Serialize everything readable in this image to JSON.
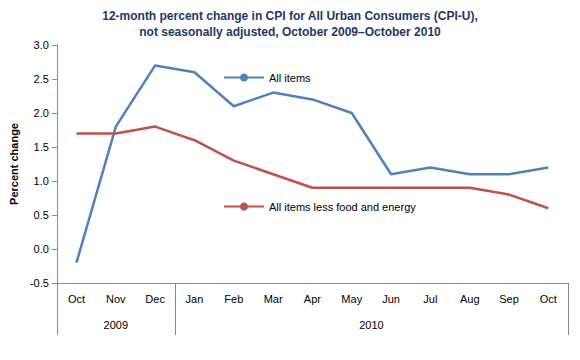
{
  "chart_data": {
    "type": "line",
    "title": "12-month percent change in CPI for All Urban Consumers (CPI-U),\nnot seasonally adjusted, October 2009–October 2010",
    "y_label": "Percent change",
    "categories": [
      "Oct",
      "Nov",
      "Dec",
      "Jan",
      "Feb",
      "Mar",
      "Apr",
      "May",
      "Jun",
      "Jul",
      "Aug",
      "Sep",
      "Oct"
    ],
    "series": [
      {
        "name": "All items",
        "color": "#4f81bd",
        "values": [
          -0.2,
          1.8,
          2.7,
          2.6,
          2.1,
          2.3,
          2.2,
          2.0,
          1.1,
          1.2,
          1.1,
          1.1,
          1.2
        ]
      },
      {
        "name": "All items less food and energy",
        "color": "#c0504d",
        "values": [
          1.7,
          1.7,
          1.8,
          1.6,
          1.3,
          1.1,
          0.9,
          0.9,
          0.9,
          0.9,
          0.9,
          0.8,
          0.6
        ]
      }
    ],
    "ylim": [
      -0.5,
      3.0
    ],
    "yticks": [
      -0.5,
      {
        "value": 0,
        "label": "0.0"
      },
      0.5,
      {
        "value": 1,
        "label": "1.0"
      },
      1.5,
      {
        "value": 2,
        "label": "2.0"
      },
      2.5,
      {
        "value": 3,
        "label": "3.0"
      }
    ],
    "annotations": [
      {
        "text": "2009",
        "from": 0,
        "to": 2
      },
      {
        "text": "2010",
        "from": 3,
        "to": 12
      }
    ],
    "grid": false,
    "legend": "inside"
  }
}
